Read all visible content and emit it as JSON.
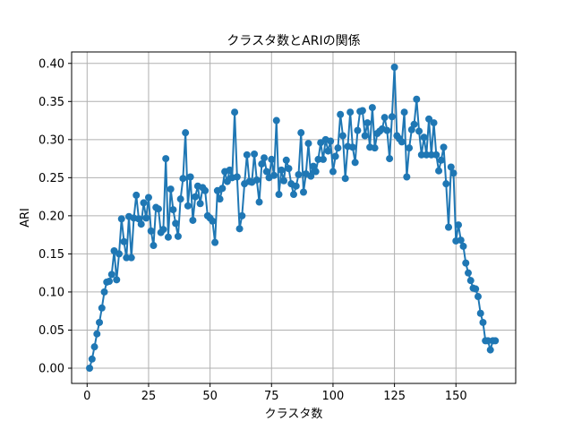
{
  "chart_data": {
    "type": "line",
    "title": "クラスタ数とARIの関係",
    "xlabel": "クラスタ数",
    "ylabel": "ARI",
    "xlim": [
      -6.3,
      174.3
    ],
    "ylim": [
      -0.02,
      0.415
    ],
    "xticks": [
      0,
      25,
      50,
      75,
      100,
      125,
      150
    ],
    "yticks": [
      0.0,
      0.05,
      0.1,
      0.15,
      0.2,
      0.25,
      0.3,
      0.35,
      0.4
    ],
    "xtick_labels": [
      "0",
      "25",
      "50",
      "75",
      "100",
      "125",
      "150"
    ],
    "ytick_labels": [
      "0.00",
      "0.05",
      "0.10",
      "0.15",
      "0.20",
      "0.25",
      "0.30",
      "0.35",
      "0.40"
    ],
    "grid": true,
    "marker": "circle",
    "color": "#1f77b4",
    "series": [
      {
        "name": "ARI",
        "x": [
          1,
          2,
          3,
          4,
          5,
          6,
          7,
          8,
          9,
          10,
          11,
          12,
          13,
          14,
          15,
          16,
          17,
          18,
          19,
          20,
          21,
          22,
          23,
          24,
          25,
          26,
          27,
          28,
          29,
          30,
          31,
          32,
          33,
          34,
          35,
          36,
          37,
          38,
          39,
          40,
          41,
          42,
          43,
          44,
          45,
          46,
          47,
          48,
          49,
          50,
          51,
          52,
          53,
          54,
          55,
          56,
          57,
          58,
          59,
          60,
          61,
          62,
          63,
          64,
          65,
          66,
          67,
          68,
          69,
          70,
          71,
          72,
          73,
          74,
          75,
          76,
          77,
          78,
          79,
          80,
          81,
          82,
          83,
          84,
          85,
          86,
          87,
          88,
          89,
          90,
          91,
          92,
          93,
          94,
          95,
          96,
          97,
          98,
          99,
          100,
          101,
          102,
          103,
          104,
          105,
          106,
          107,
          108,
          109,
          110,
          111,
          112,
          113,
          114,
          115,
          116,
          117,
          118,
          119,
          120,
          121,
          122,
          123,
          124,
          125,
          126,
          127,
          128,
          129,
          130,
          131,
          132,
          133,
          134,
          135,
          136,
          137,
          138,
          139,
          140,
          141,
          142,
          143,
          144,
          145,
          146,
          147,
          148,
          149,
          150,
          151,
          152,
          153,
          154,
          155,
          156,
          157,
          158,
          159,
          160,
          161,
          162,
          163,
          164,
          165,
          166
        ],
        "values": [
          0.0,
          0.012,
          0.028,
          0.045,
          0.06,
          0.079,
          0.1,
          0.113,
          0.114,
          0.123,
          0.154,
          0.116,
          0.15,
          0.196,
          0.166,
          0.145,
          0.199,
          0.145,
          0.197,
          0.227,
          0.196,
          0.189,
          0.217,
          0.197,
          0.224,
          0.18,
          0.161,
          0.211,
          0.209,
          0.178,
          0.182,
          0.275,
          0.172,
          0.235,
          0.208,
          0.19,
          0.173,
          0.222,
          0.249,
          0.309,
          0.213,
          0.251,
          0.194,
          0.225,
          0.239,
          0.216,
          0.237,
          0.233,
          0.2,
          0.197,
          0.193,
          0.165,
          0.233,
          0.222,
          0.236,
          0.258,
          0.245,
          0.26,
          0.25,
          0.336,
          0.251,
          0.183,
          0.2,
          0.242,
          0.28,
          0.245,
          0.244,
          0.281,
          0.247,
          0.218,
          0.268,
          0.276,
          0.258,
          0.25,
          0.274,
          0.253,
          0.325,
          0.228,
          0.26,
          0.246,
          0.273,
          0.262,
          0.242,
          0.228,
          0.239,
          0.254,
          0.309,
          0.231,
          0.255,
          0.295,
          0.252,
          0.265,
          0.258,
          0.274,
          0.296,
          0.274,
          0.3,
          0.285,
          0.298,
          0.258,
          0.278,
          0.289,
          0.333,
          0.305,
          0.249,
          0.291,
          0.336,
          0.29,
          0.27,
          0.312,
          0.337,
          0.338,
          0.305,
          0.322,
          0.29,
          0.342,
          0.289,
          0.308,
          0.311,
          0.314,
          0.329,
          0.312,
          0.275,
          0.33,
          0.395,
          0.305,
          0.301,
          0.297,
          0.336,
          0.251,
          0.289,
          0.313,
          0.32,
          0.353,
          0.311,
          0.28,
          0.303,
          0.28,
          0.327,
          0.28,
          0.322,
          0.28,
          0.259,
          0.273,
          0.29,
          0.242,
          0.185,
          0.264,
          0.256,
          0.167,
          0.188,
          0.168,
          0.16,
          0.138,
          0.125,
          0.115,
          0.105,
          0.104,
          0.094,
          0.072,
          0.06,
          0.036,
          0.036,
          0.024,
          0.036,
          0.036
        ]
      }
    ]
  }
}
